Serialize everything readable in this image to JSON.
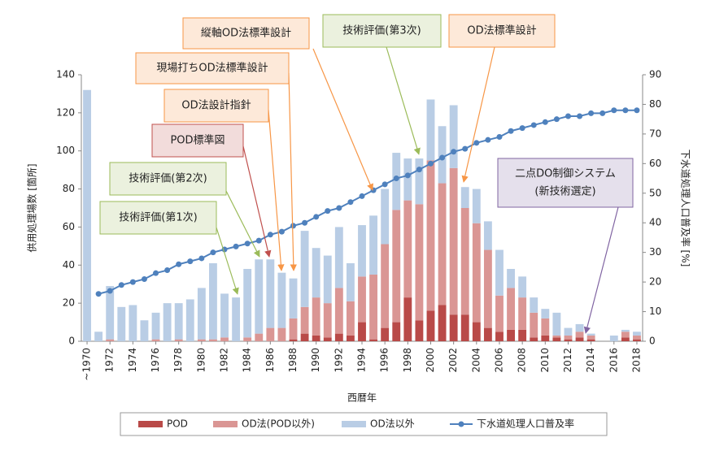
{
  "chart_data": {
    "type": "bar",
    "y_label": "供用処理場数 [箇所]",
    "y2_label": "下水道処理人口普及率 [%]",
    "x_label": "西暦年",
    "categories": [
      "~1970",
      null,
      "1972",
      null,
      "1974",
      null,
      "1976",
      null,
      "1978",
      null,
      "1980",
      null,
      "1982",
      null,
      "1984",
      null,
      "1986",
      null,
      "1988",
      null,
      "1990",
      null,
      "1992",
      null,
      "1994",
      null,
      "1996",
      null,
      "1998",
      null,
      "2000",
      null,
      "2002",
      null,
      "2004",
      null,
      "2006",
      null,
      "2008",
      null,
      "2010",
      null,
      "2012",
      null,
      "2014",
      null,
      "2016",
      null,
      "2018"
    ],
    "ylim": [
      0,
      140
    ],
    "yticks": [
      0,
      20,
      40,
      60,
      80,
      100,
      120,
      140
    ],
    "y2lim": [
      0,
      90
    ],
    "y2ticks": [
      0,
      10,
      20,
      30,
      40,
      50,
      60,
      70,
      80,
      90
    ],
    "grid": false,
    "legend": "bottom",
    "series": [
      {
        "name": "POD",
        "color": "#b94a48",
        "values": [
          0,
          0,
          0,
          0,
          0,
          0,
          0,
          0,
          0,
          0,
          0,
          0,
          0,
          0,
          0,
          0,
          0,
          0,
          1,
          4,
          3,
          2,
          4,
          3,
          10,
          1,
          7,
          10,
          23,
          11,
          16,
          19,
          14,
          14,
          10,
          7,
          5,
          6,
          6,
          2,
          3,
          2,
          1,
          2,
          1,
          0,
          0,
          2,
          1
        ]
      },
      {
        "name": "OD法(POD以外)",
        "color": "#da9694",
        "values": [
          0,
          0,
          1,
          0,
          0,
          0,
          1,
          0,
          1,
          0,
          1,
          1,
          2,
          0,
          2,
          4,
          7,
          7,
          11,
          14,
          20,
          18,
          24,
          18,
          24,
          34,
          44,
          59,
          51,
          61,
          79,
          64,
          77,
          56,
          52,
          41,
          19,
          22,
          17,
          13,
          9,
          1,
          2,
          3,
          2,
          0,
          0,
          3,
          2
        ]
      },
      {
        "name": "OD法以外",
        "color": "#b9cde5",
        "values": [
          132,
          5,
          28,
          18,
          19,
          11,
          14,
          20,
          19,
          22,
          27,
          40,
          23,
          23,
          36,
          39,
          36,
          29,
          21,
          40,
          26,
          25,
          32,
          20,
          27,
          31,
          29,
          30,
          22,
          24,
          32,
          30,
          33,
          11,
          18,
          15,
          24,
          10,
          11,
          8,
          5,
          12,
          4,
          4,
          1,
          0,
          3,
          1,
          2
        ]
      },
      {
        "name": "下水道処理人口普及率",
        "color": "#4f81bd",
        "type": "line",
        "axis": "y2",
        "values": [
          null,
          16,
          17,
          19,
          20,
          21,
          23,
          24,
          26,
          27,
          28,
          30,
          31,
          32,
          33,
          34,
          36,
          37,
          39,
          40,
          42,
          44,
          45,
          47,
          49,
          51,
          53,
          55,
          56,
          58,
          60,
          62,
          64,
          65,
          67,
          68,
          69,
          71,
          72,
          73,
          74,
          75,
          76,
          76,
          77,
          77,
          78,
          78,
          78
        ]
      }
    ],
    "annotations": [
      {
        "text": [
          "縦軸OD法標準設計"
        ],
        "color": "#f79646",
        "fill": "#fde9d9"
      },
      {
        "text": [
          "技術評価(第3次)"
        ],
        "color": "#9bbb59",
        "fill": "#ebf1de"
      },
      {
        "text": [
          "OD法標準設計"
        ],
        "color": "#f79646",
        "fill": "#fde9d9"
      },
      {
        "text": [
          "現場打ちOD法標準設計"
        ],
        "color": "#f79646",
        "fill": "#fde9d9"
      },
      {
        "text": [
          "OD法設計指針"
        ],
        "color": "#f79646",
        "fill": "#fde9d9"
      },
      {
        "text": [
          "POD標準図"
        ],
        "color": "#c0504d",
        "fill": "#f2dcdb"
      },
      {
        "text": [
          "技術評価(第2次)"
        ],
        "color": "#9bbb59",
        "fill": "#ebf1de"
      },
      {
        "text": [
          "技術評価(第1次)"
        ],
        "color": "#9bbb59",
        "fill": "#ebf1de"
      },
      {
        "text": [
          "二点DO制御システム",
          "(新技術選定)"
        ],
        "color": "#8064a2",
        "fill": "#e5e0ec"
      }
    ]
  }
}
